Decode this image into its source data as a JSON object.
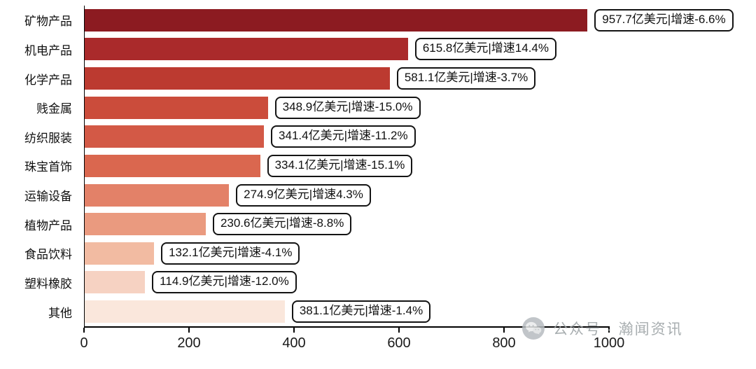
{
  "chart_data": {
    "type": "bar",
    "orientation": "horizontal",
    "title": "",
    "xlabel": "",
    "ylabel": "",
    "xlim": [
      0,
      1000
    ],
    "x_ticks": [
      0,
      200,
      400,
      600,
      800,
      1000
    ],
    "grid": false,
    "categories": [
      "矿物产品",
      "机电产品",
      "化学产品",
      "贱金属",
      "纺织服装",
      "珠宝首饰",
      "运输设备",
      "植物产品",
      "食品饮料",
      "塑料橡胶",
      "其他"
    ],
    "values": [
      957.7,
      615.8,
      581.1,
      348.9,
      341.4,
      334.1,
      274.9,
      230.6,
      132.1,
      114.9,
      381.1
    ],
    "growth_pct": [
      -6.6,
      14.4,
      -3.7,
      -15.0,
      -11.2,
      -15.1,
      4.3,
      -8.8,
      -4.1,
      -12.0,
      -1.4
    ],
    "labels": [
      "957.7亿美元|增速-6.6%",
      "615.8亿美元|增速14.4%",
      "581.1亿美元|增速-3.7%",
      "348.9亿美元|增速-15.0%",
      "341.4亿美元|增速-11.2%",
      "334.1亿美元|增速-15.1%",
      "274.9亿美元|增速4.3%",
      "230.6亿美元|增速-8.8%",
      "132.1亿美元|增速-4.1%",
      "114.9亿美元|增速-12.0%",
      "381.1亿美元|增速-1.4%"
    ],
    "bar_colors": [
      "#8C1B21",
      "#AA2A2B",
      "#BC3A30",
      "#CB4C3B",
      "#D35946",
      "#DA674F",
      "#E38168",
      "#EA9A7F",
      "#F2BBA2",
      "#F6D2C2",
      "#FAE7DC"
    ],
    "value_label_box": {
      "border_color": "#141414",
      "background": "#ffffff"
    }
  },
  "watermark": {
    "icon": "wechat-icon",
    "text": "公众号 · 瀚闻资讯",
    "color": "#9aa0a3"
  }
}
